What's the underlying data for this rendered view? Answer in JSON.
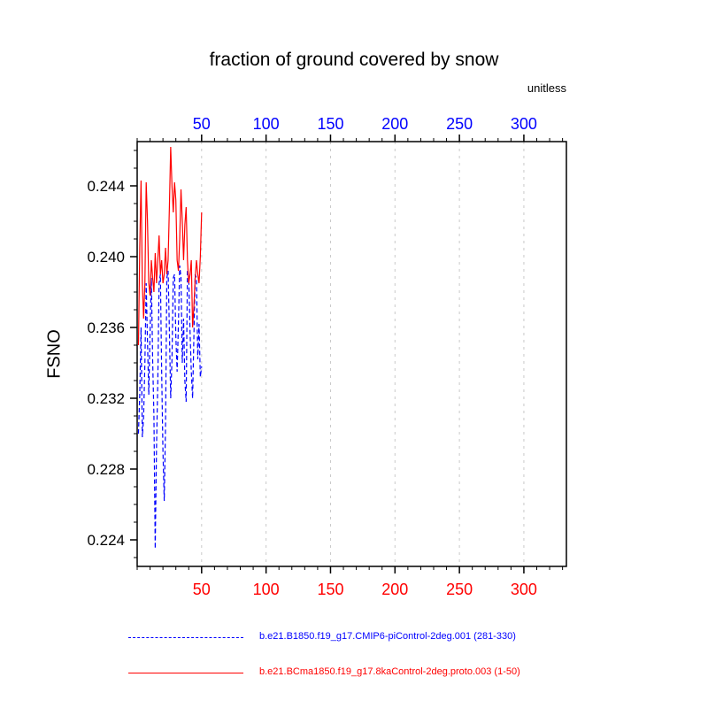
{
  "title": "fraction of ground covered by snow",
  "chart_data": {
    "type": "line",
    "title": "fraction of ground covered by snow",
    "ylabel": "FSNO",
    "units": "unitless",
    "xlim": [
      0,
      333
    ],
    "ylim": [
      0.2225,
      0.2465
    ],
    "xticks": [
      50,
      100,
      150,
      200,
      250,
      300
    ],
    "x_minor_step": 10,
    "yticks": [
      0.224,
      0.228,
      0.232,
      0.236,
      0.24,
      0.244
    ],
    "y_minor_step": 0.001,
    "grid": true,
    "grid_color": "#c9c9c9",
    "top_axis_label_color": "#0000ff",
    "bottom_axis_label_color": "#ff0000",
    "axis_color": "#000000",
    "legend_position": "bottom",
    "series": [
      {
        "name": "b.e21.B1850.f19_g17.CMIP6-piControl-2deg.001 (281-330)",
        "color": "#0000ff",
        "style": "dashed",
        "x_start": 1,
        "values": [
          0.23,
          0.2322,
          0.236,
          0.2298,
          0.231,
          0.234,
          0.2385,
          0.2352,
          0.2322,
          0.2358,
          0.2388,
          0.2342,
          0.231,
          0.2235,
          0.2292,
          0.233,
          0.2385,
          0.239,
          0.2335,
          0.229,
          0.2262,
          0.2305,
          0.2388,
          0.2392,
          0.2358,
          0.232,
          0.2342,
          0.2388,
          0.239,
          0.2355,
          0.2335,
          0.2362,
          0.2395,
          0.2388,
          0.234,
          0.2365,
          0.233,
          0.2318,
          0.2392,
          0.2388,
          0.2358,
          0.2335,
          0.232,
          0.2355,
          0.239,
          0.2388,
          0.2342,
          0.2362,
          0.2332,
          0.2338
        ]
      },
      {
        "name": "b.e21.BCma1850.f19_g17.8kaControl-2deg.proto.003 (1-50)",
        "color": "#ff0000",
        "style": "solid",
        "x_start": 1,
        "values": [
          0.235,
          0.2405,
          0.2443,
          0.2385,
          0.2365,
          0.2385,
          0.2442,
          0.242,
          0.2385,
          0.2378,
          0.2398,
          0.2388,
          0.238,
          0.2402,
          0.2385,
          0.2398,
          0.2412,
          0.239,
          0.2398,
          0.2385,
          0.239,
          0.2405,
          0.239,
          0.2398,
          0.2428,
          0.2462,
          0.244,
          0.2425,
          0.2442,
          0.2432,
          0.2398,
          0.2392,
          0.241,
          0.2438,
          0.242,
          0.2398,
          0.2418,
          0.2428,
          0.2398,
          0.2385,
          0.239,
          0.2398,
          0.236,
          0.2372,
          0.2388,
          0.2398,
          0.239,
          0.2385,
          0.24,
          0.2425
        ]
      }
    ]
  }
}
